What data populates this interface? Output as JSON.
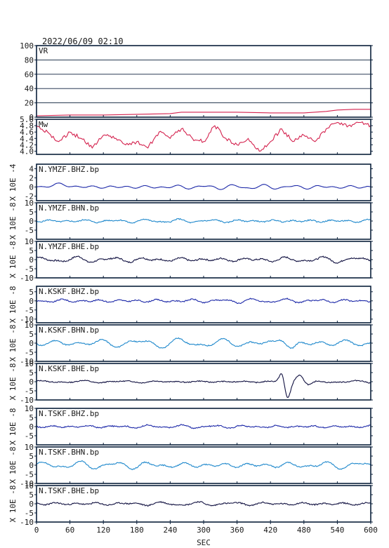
{
  "chart_data": {
    "type": "line",
    "timestamp": "2022/06/09 02:10",
    "xlabel": "SEC",
    "xlim": [
      0,
      600
    ],
    "xticks": [
      0,
      60,
      120,
      180,
      240,
      300,
      360,
      420,
      480,
      540,
      600
    ],
    "panels": [
      {
        "kind": "vr",
        "label": "VR",
        "ylabel": "",
        "ylim": [
          0,
          100
        ],
        "yticks": [
          0,
          20,
          40,
          60,
          80,
          100
        ],
        "grid": true,
        "color": "#d4224e",
        "series": [
          {
            "x": 0,
            "y": 2
          },
          {
            "x": 60,
            "y": 3
          },
          {
            "x": 120,
            "y": 3
          },
          {
            "x": 180,
            "y": 4
          },
          {
            "x": 240,
            "y": 5
          },
          {
            "x": 260,
            "y": 7
          },
          {
            "x": 300,
            "y": 7
          },
          {
            "x": 360,
            "y": 7
          },
          {
            "x": 420,
            "y": 6
          },
          {
            "x": 480,
            "y": 6
          },
          {
            "x": 520,
            "y": 8
          },
          {
            "x": 540,
            "y": 10
          },
          {
            "x": 570,
            "y": 11
          },
          {
            "x": 600,
            "y": 11
          }
        ]
      },
      {
        "kind": "mw",
        "label": "Mw",
        "ylabel": "",
        "ylim": [
          3.9,
          5.0
        ],
        "yticks": [
          4.0,
          4.2,
          4.4,
          4.6,
          4.8,
          5.0
        ],
        "grid": false,
        "yticklabels": [
          "4.0",
          "4.2",
          "4.4",
          "4.6",
          "4.8",
          "5.0"
        ],
        "color": "#d4224e",
        "series": [
          {
            "x": 0,
            "y": 4.8
          },
          {
            "x": 20,
            "y": 4.6
          },
          {
            "x": 40,
            "y": 4.3
          },
          {
            "x": 60,
            "y": 4.6
          },
          {
            "x": 80,
            "y": 4.4
          },
          {
            "x": 100,
            "y": 4.1
          },
          {
            "x": 120,
            "y": 4.5
          },
          {
            "x": 140,
            "y": 4.4
          },
          {
            "x": 160,
            "y": 4.2
          },
          {
            "x": 180,
            "y": 4.3
          },
          {
            "x": 200,
            "y": 4.1
          },
          {
            "x": 220,
            "y": 4.6
          },
          {
            "x": 240,
            "y": 4.4
          },
          {
            "x": 260,
            "y": 4.7
          },
          {
            "x": 280,
            "y": 4.4
          },
          {
            "x": 300,
            "y": 4.3
          },
          {
            "x": 320,
            "y": 4.8
          },
          {
            "x": 340,
            "y": 4.4
          },
          {
            "x": 360,
            "y": 4.2
          },
          {
            "x": 380,
            "y": 4.4
          },
          {
            "x": 400,
            "y": 4.0
          },
          {
            "x": 420,
            "y": 4.3
          },
          {
            "x": 440,
            "y": 4.7
          },
          {
            "x": 460,
            "y": 4.3
          },
          {
            "x": 480,
            "y": 4.5
          },
          {
            "x": 500,
            "y": 4.3
          },
          {
            "x": 520,
            "y": 4.7
          },
          {
            "x": 540,
            "y": 4.9
          },
          {
            "x": 560,
            "y": 4.8
          },
          {
            "x": 580,
            "y": 4.9
          },
          {
            "x": 600,
            "y": 4.8
          }
        ]
      },
      {
        "kind": "wave",
        "label": "N.YMZF.BHZ.bp",
        "ylabel": "X 10E -4",
        "ylim": [
          -3,
          5
        ],
        "yticks": [
          -2,
          0,
          2,
          4
        ],
        "color": "#1c28a8",
        "amp": 0.4,
        "freq": 0.12,
        "noise": 0.02,
        "seed": 3,
        "events": [
          {
            "x": 40,
            "amp": 0.5,
            "w": 25
          }
        ]
      },
      {
        "kind": "wave",
        "label": "N.YMZF.BHN.bp",
        "ylabel": "X 10E -8",
        "ylim": [
          -10,
          10
        ],
        "yticks": [
          -5,
          0,
          5,
          10
        ],
        "color": "#1e88cc",
        "amp": 0.8,
        "freq": 0.11,
        "noise": 0.3,
        "seed": 5,
        "events": []
      },
      {
        "kind": "wave",
        "label": "N.YMZF.BHE.bp",
        "ylabel": "X 10E -8",
        "ylim": [
          -10,
          10
        ],
        "yticks": [
          -10,
          -5,
          0,
          5,
          10
        ],
        "color": "#101040",
        "amp": 1.2,
        "freq": 0.1,
        "noise": 0.4,
        "seed": 7,
        "events": []
      },
      {
        "kind": "wave",
        "label": "N.KSKF.BHZ.bp",
        "ylabel": "X 10E -8",
        "ylim": [
          -12,
          8
        ],
        "yticks": [
          -10,
          -5,
          0,
          5
        ],
        "color": "#1c28a8",
        "amp": 0.9,
        "freq": 0.11,
        "noise": 0.3,
        "seed": 9,
        "events": []
      },
      {
        "kind": "wave",
        "label": "N.KSKF.BHN.bp",
        "ylabel": "X 10E -8",
        "ylim": [
          -10,
          10
        ],
        "yticks": [
          -10,
          -5,
          0,
          5,
          10
        ],
        "color": "#1e88cc",
        "amp": 2.0,
        "freq": 0.085,
        "noise": 0.3,
        "seed": 11,
        "events": [
          {
            "x": 440,
            "amp": 2.5,
            "w": 10
          },
          {
            "x": 460,
            "amp": -3,
            "w": 10
          }
        ]
      },
      {
        "kind": "wave",
        "label": "N.KSKF.BHE.bp",
        "ylabel": "X 10E -8",
        "ylim": [
          -10,
          10
        ],
        "yticks": [
          -10,
          -5,
          0,
          5,
          10
        ],
        "color": "#101040",
        "amp": 0.5,
        "freq": 0.09,
        "noise": 0.25,
        "seed": 13,
        "events": [
          {
            "x": 440,
            "amp": 5,
            "w": 6
          },
          {
            "x": 451,
            "amp": -9,
            "w": 7
          },
          {
            "x": 472,
            "amp": 4,
            "w": 9
          },
          {
            "x": 490,
            "amp": -2,
            "w": 9
          }
        ]
      },
      {
        "kind": "wave",
        "label": "N.TSKF.BHZ.bp",
        "ylabel": "X 10E -8",
        "ylim": [
          -10,
          10
        ],
        "yticks": [
          -5,
          0,
          5,
          10
        ],
        "color": "#1c28a8",
        "amp": 0.7,
        "freq": 0.11,
        "noise": 0.3,
        "seed": 17,
        "events": []
      },
      {
        "kind": "wave",
        "label": "N.TSKF.BHN.bp",
        "ylabel": "X 10E -8",
        "ylim": [
          -10,
          10
        ],
        "yticks": [
          -10,
          -5,
          0,
          5,
          10
        ],
        "color": "#1e88cc",
        "amp": 1.6,
        "freq": 0.1,
        "noise": 0.3,
        "seed": 19,
        "events": []
      },
      {
        "kind": "wave",
        "label": "N.TSKF.BHE.bp",
        "ylabel": "X 10E -8",
        "ylim": [
          -10,
          10
        ],
        "yticks": [
          -10,
          -5,
          0,
          5,
          10
        ],
        "color": "#101040",
        "amp": 0.8,
        "freq": 0.1,
        "noise": 0.35,
        "seed": 23,
        "events": []
      }
    ]
  }
}
